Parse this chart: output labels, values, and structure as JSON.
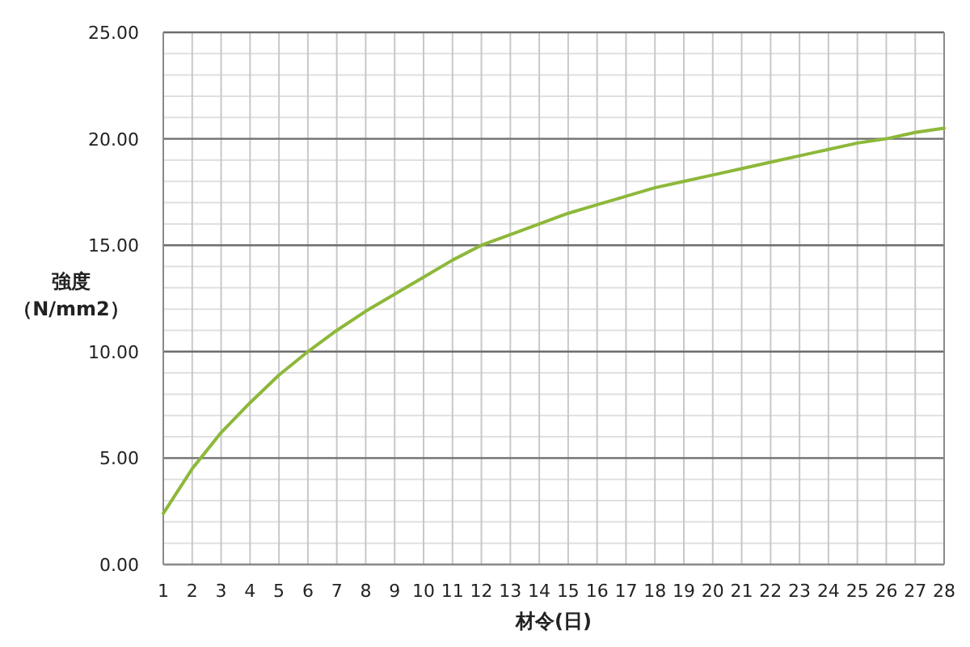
{
  "chart_data": {
    "type": "line",
    "x": [
      1,
      2,
      3,
      4,
      5,
      6,
      7,
      8,
      9,
      10,
      11,
      12,
      13,
      14,
      15,
      16,
      17,
      18,
      19,
      20,
      21,
      22,
      23,
      24,
      25,
      26,
      27,
      28
    ],
    "series": [
      {
        "color": "#8db83a",
        "values": [
          2.4,
          4.5,
          6.2,
          7.6,
          8.9,
          10.0,
          11.0,
          11.9,
          12.7,
          13.5,
          14.3,
          15.0,
          15.5,
          16.0,
          16.5,
          16.9,
          17.3,
          17.7,
          18.0,
          18.3,
          18.6,
          18.9,
          19.2,
          19.5,
          19.8,
          20.0,
          20.3,
          20.5
        ]
      }
    ],
    "xlabel": "材令(日)",
    "ylabel": "強度（N/mm2）",
    "xlim": [
      1,
      28
    ],
    "xticks": [
      1,
      2,
      3,
      4,
      5,
      6,
      7,
      8,
      9,
      10,
      11,
      12,
      13,
      14,
      15,
      16,
      17,
      18,
      19,
      20,
      21,
      22,
      23,
      24,
      25,
      26,
      27,
      28
    ],
    "ylim": [
      0,
      25
    ],
    "yticks": [
      {
        "value": 0,
        "label": "0.00"
      },
      {
        "value": 5,
        "label": "5.00"
      },
      {
        "value": 10,
        "label": "10.00"
      },
      {
        "value": 15,
        "label": "15.00"
      },
      {
        "value": 20,
        "label": "20.00"
      },
      {
        "value": 25,
        "label": "25.00"
      }
    ],
    "grid": true,
    "marker": "none",
    "line_style": "solid"
  }
}
